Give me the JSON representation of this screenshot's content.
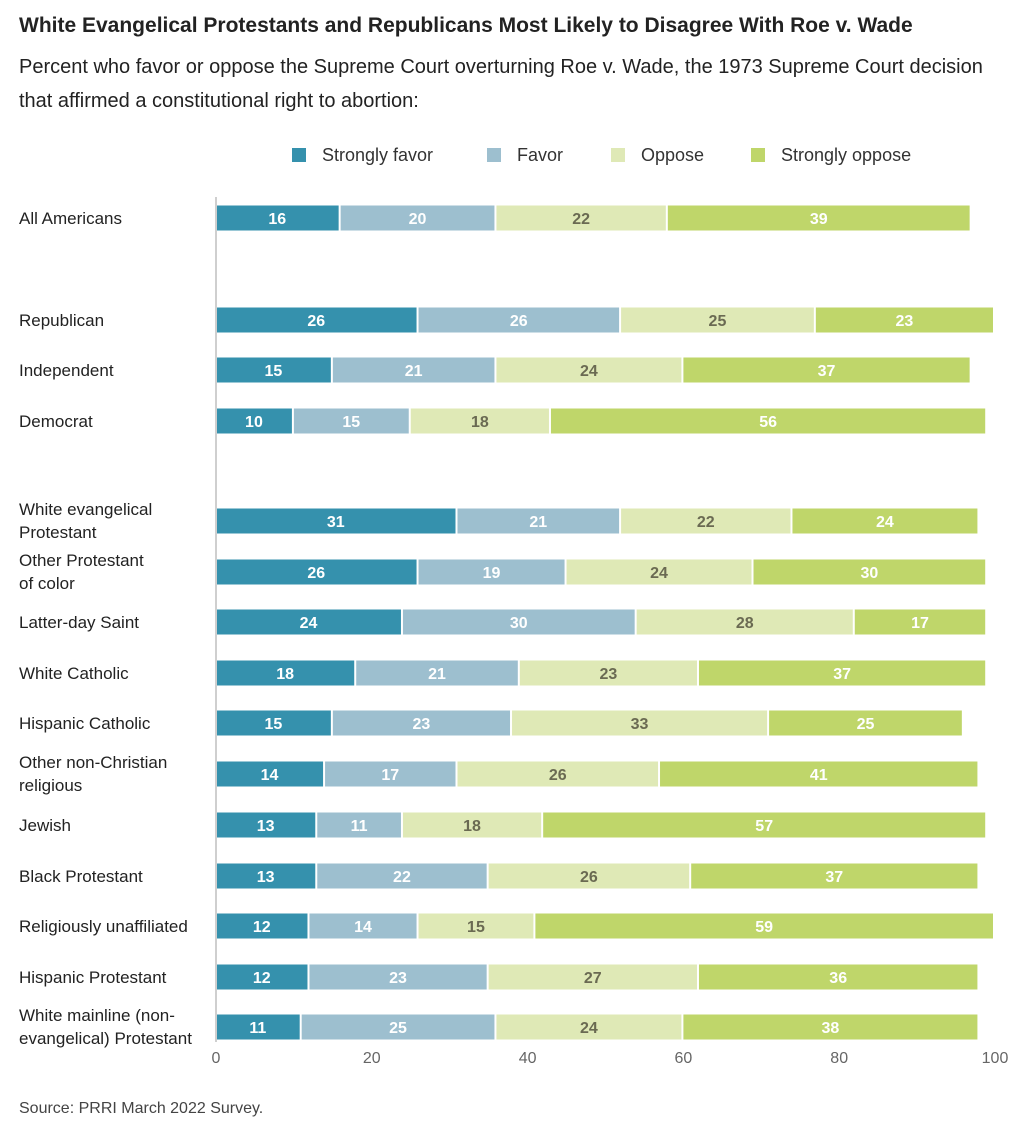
{
  "chart_data": {
    "type": "bar",
    "orientation": "horizontal",
    "stacked": true,
    "title": "White Evangelical Protestants and Republicans Most Likely to Disagree With Roe v. Wade",
    "subtitle": "Percent who favor or oppose the Supreme Court overturning Roe v. Wade, the 1973 Supreme Court decision that affirmed a constitutional right to abortion:",
    "xlim": [
      0,
      100
    ],
    "xticks": [
      "0",
      "20",
      "40",
      "60",
      "80",
      "100"
    ],
    "legend_position": "top",
    "grid": false,
    "categories": [
      "All Americans",
      "Republican",
      "Independent",
      "Democrat",
      "White evangelical Protestant",
      "Other Protestant of color",
      "Latter-day Saint",
      "White Catholic",
      "Hispanic Catholic",
      "Other non-Christian religious",
      "Jewish",
      "Black Protestant",
      "Religiously unaffiliated",
      "Hispanic Protestant",
      "White mainline (non-evangelical) Protestant"
    ],
    "category_lines": [
      [
        "All Americans"
      ],
      [
        "Republican"
      ],
      [
        "Independent"
      ],
      [
        "Democrat"
      ],
      [
        "White evangelical",
        "Protestant"
      ],
      [
        "Other Protestant",
        "of color"
      ],
      [
        "Latter-day Saint"
      ],
      [
        "White Catholic"
      ],
      [
        "Hispanic Catholic"
      ],
      [
        "Other non-Christian",
        "religious"
      ],
      [
        "Jewish"
      ],
      [
        "Black Protestant"
      ],
      [
        "Religiously unaffiliated"
      ],
      [
        "Hispanic Protestant"
      ],
      [
        "White mainline (non-",
        "evangelical) Protestant"
      ]
    ],
    "series": [
      {
        "name": "Strongly favor",
        "color": "#3591ad",
        "label_color": "#ffffff",
        "values": [
          16,
          26,
          15,
          10,
          31,
          26,
          24,
          18,
          15,
          14,
          13,
          13,
          12,
          12,
          11
        ]
      },
      {
        "name": "Favor",
        "color": "#9dbfcf",
        "label_color": "#ffffff",
        "values": [
          20,
          26,
          21,
          15,
          21,
          19,
          30,
          21,
          23,
          17,
          11,
          22,
          14,
          23,
          25
        ]
      },
      {
        "name": "Oppose",
        "color": "#dfe9b6",
        "label_color": "#6a6a52",
        "values": [
          22,
          25,
          24,
          18,
          22,
          24,
          28,
          23,
          33,
          26,
          18,
          26,
          15,
          27,
          24
        ]
      },
      {
        "name": "Strongly oppose",
        "color": "#bfd66a",
        "label_color": "#ffffff",
        "values": [
          39,
          23,
          37,
          56,
          24,
          30,
          17,
          37,
          25,
          41,
          57,
          37,
          59,
          36,
          38
        ]
      }
    ]
  },
  "source": "Source: PRRI March 2022 Survey."
}
